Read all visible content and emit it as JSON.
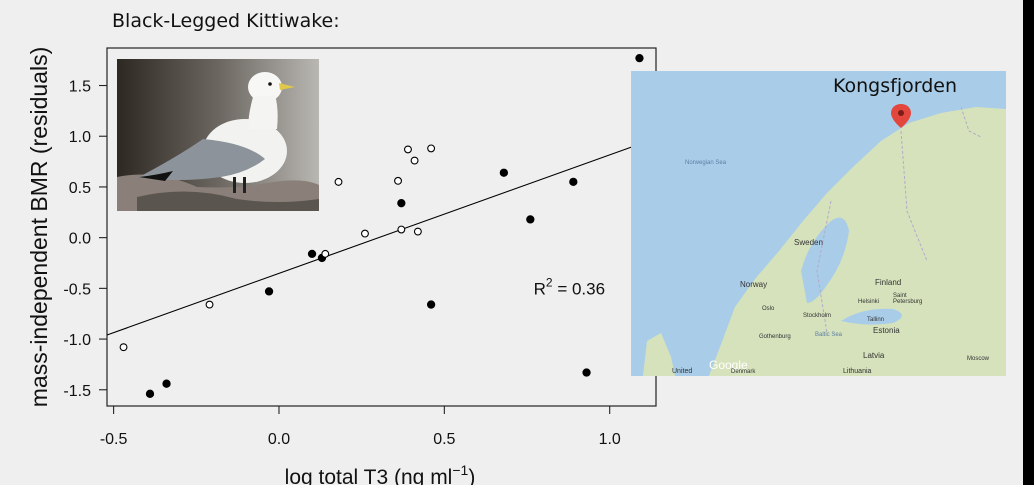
{
  "slide": {
    "title": "Black-Legged Kittiwake:",
    "background": "#efefef"
  },
  "chart_data": {
    "type": "scatter",
    "xlabel": "log total T3 (ng ml",
    "xlabel_sup": "−1",
    "xlabel_end": ")",
    "ylabel": "mass-independent BMR (residuals)",
    "xlim": [
      -0.52,
      1.14
    ],
    "ylim": [
      -1.66,
      1.87
    ],
    "x_ticks": [
      -0.5,
      0.0,
      0.5,
      1.0
    ],
    "x_tick_labels": [
      "-0.5",
      "0.0",
      "0.5",
      "1.0"
    ],
    "y_ticks": [
      -1.5,
      -1.0,
      -0.5,
      0.0,
      0.5,
      1.0,
      1.5
    ],
    "y_tick_labels": [
      "-1.5",
      "-1.0",
      "-0.5",
      "0.0",
      "0.5",
      "1.0",
      "1.5"
    ],
    "grid": false,
    "series": [
      {
        "marker": "filled-circle",
        "color": "#000000",
        "points": [
          [
            -0.39,
            -1.54
          ],
          [
            -0.34,
            -1.44
          ],
          [
            -0.03,
            -0.53
          ],
          [
            0.1,
            -0.16
          ],
          [
            0.13,
            -0.2
          ],
          [
            0.37,
            0.34
          ],
          [
            0.46,
            -0.66
          ],
          [
            0.68,
            0.64
          ],
          [
            0.76,
            0.18
          ],
          [
            0.89,
            0.55
          ],
          [
            0.93,
            -1.33
          ],
          [
            1.09,
            1.77
          ]
        ]
      },
      {
        "marker": "open-circle",
        "color": "#000000",
        "points": [
          [
            -0.47,
            -1.08
          ],
          [
            -0.21,
            -0.66
          ],
          [
            0.14,
            -0.16
          ],
          [
            0.18,
            0.55
          ],
          [
            0.26,
            0.04
          ],
          [
            0.36,
            0.56
          ],
          [
            0.37,
            0.08
          ],
          [
            0.39,
            0.87
          ],
          [
            0.41,
            0.76
          ],
          [
            0.42,
            0.06
          ],
          [
            0.46,
            0.88
          ]
        ]
      }
    ],
    "fit_line": {
      "x": [
        -0.52,
        1.14
      ],
      "y": [
        -0.96,
        0.98
      ],
      "color": "#000000"
    },
    "annotation": {
      "text": "R",
      "sup": "2",
      "rest": " = 0.36",
      "x": 0.77,
      "y": -0.56
    }
  },
  "bird_photo": {
    "icon": "kittiwake-photo-icon"
  },
  "map": {
    "title": "Kongsfjorden",
    "water": "#a9cde8",
    "land": "#d6e2bc",
    "marker_color": "#e2463c",
    "labels": [
      "Norwegian Sea",
      "Sweden",
      "Norway",
      "Finland",
      "Oslo",
      "Stockholm",
      "Helsinki",
      "Saint Petersburg",
      "Tallinn",
      "Estonia",
      "Gothenburg",
      "Baltic Sea",
      "Latvia",
      "Moscow",
      "Google",
      "Denmark",
      "Lithuania",
      "United"
    ]
  }
}
